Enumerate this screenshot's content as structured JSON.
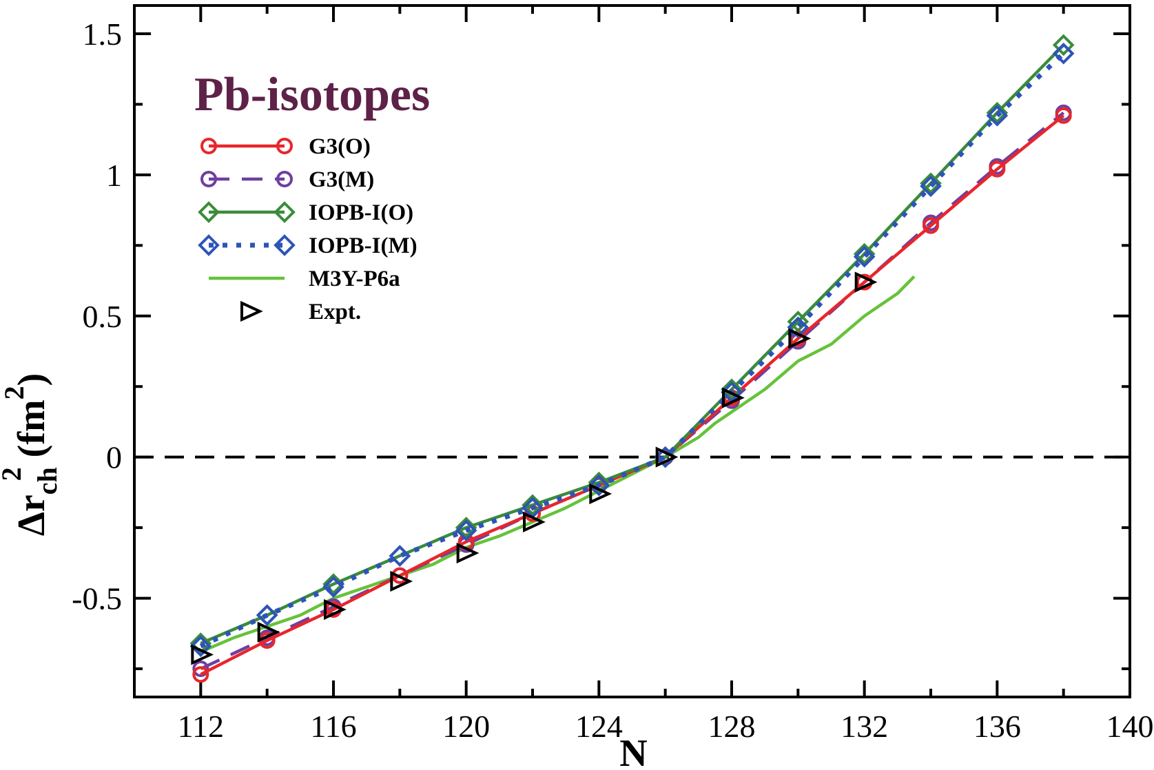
{
  "chart_data": {
    "type": "line",
    "title": "Pb-isotopes",
    "xlabel": "N",
    "ylabel": {
      "base": "Δr",
      "sub": "ch",
      "sup": "2",
      "unit_open": " (fm",
      "unit_sup": "2",
      "unit_close": ")"
    },
    "xlim": [
      110,
      140
    ],
    "ylim": [
      -0.85,
      1.6
    ],
    "xticks": [
      112,
      116,
      120,
      124,
      128,
      132,
      136,
      140
    ],
    "xtick_labels": [
      "112",
      "116",
      "120",
      "124",
      "128",
      "132",
      "136",
      "140"
    ],
    "yticks": [
      -0.5,
      0,
      0.5,
      1,
      1.5
    ],
    "ytick_labels": [
      "-0.5",
      "0",
      "0.5",
      "1",
      "1.5"
    ],
    "reference_line": {
      "y": 0,
      "style": "dashed"
    },
    "legend_position": "top-left",
    "series": [
      {
        "name": "G3(O)",
        "color": "#e8262b",
        "line": "solid",
        "marker": "circle",
        "x": [
          112,
          114,
          116,
          118,
          120,
          122,
          124,
          126,
          128,
          130,
          132,
          134,
          136,
          138
        ],
        "y": [
          -0.77,
          -0.65,
          -0.54,
          -0.42,
          -0.3,
          -0.2,
          -0.1,
          0.0,
          0.21,
          0.42,
          0.62,
          0.82,
          1.02,
          1.21
        ]
      },
      {
        "name": "G3(M)",
        "color": "#6f3fa0",
        "line": "dashed",
        "marker": "circle",
        "x": [
          112,
          114,
          116,
          118,
          120,
          122,
          124,
          126,
          128,
          130,
          132,
          134,
          136,
          138
        ],
        "y": [
          -0.75,
          -0.64,
          -0.53,
          -0.42,
          -0.31,
          -0.2,
          -0.1,
          0.0,
          0.2,
          0.41,
          0.62,
          0.83,
          1.03,
          1.22
        ]
      },
      {
        "name": "IOPB-I(O)",
        "color": "#3a8c3a",
        "line": "solid",
        "marker": "diamond",
        "x": [
          112,
          114,
          116,
          118,
          120,
          122,
          124,
          126,
          128,
          130,
          132,
          134,
          136,
          138
        ],
        "y": [
          -0.66,
          -0.56,
          -0.45,
          -0.35,
          -0.25,
          -0.17,
          -0.09,
          0.0,
          0.24,
          0.48,
          0.72,
          0.97,
          1.22,
          1.46
        ]
      },
      {
        "name": "IOPB-I(M)",
        "color": "#2e54b8",
        "line": "dotted",
        "marker": "diamond",
        "x": [
          112,
          114,
          116,
          118,
          120,
          122,
          124,
          126,
          128,
          130,
          132,
          134,
          136,
          138
        ],
        "y": [
          -0.67,
          -0.56,
          -0.46,
          -0.35,
          -0.26,
          -0.18,
          -0.1,
          0.0,
          0.23,
          0.46,
          0.71,
          0.96,
          1.21,
          1.43
        ]
      },
      {
        "name": "M3Y-P6a",
        "color": "#66c23a",
        "line": "solid",
        "marker": "none",
        "x": [
          112,
          113,
          114,
          115,
          116,
          117,
          118,
          119,
          120,
          121,
          122,
          123,
          124,
          125,
          126,
          127,
          127.5,
          128,
          129,
          130,
          131,
          132,
          133,
          133.5
        ],
        "y": [
          -0.69,
          -0.64,
          -0.6,
          -0.56,
          -0.5,
          -0.46,
          -0.42,
          -0.38,
          -0.32,
          -0.28,
          -0.23,
          -0.18,
          -0.12,
          -0.06,
          0.0,
          0.07,
          0.12,
          0.16,
          0.24,
          0.34,
          0.4,
          0.5,
          0.58,
          0.64
        ]
      },
      {
        "name": "Expt.",
        "color": "#000000",
        "line": "none",
        "marker": "triangle-right",
        "x": [
          112,
          114,
          116,
          118,
          120,
          122,
          124,
          126,
          128,
          130,
          132
        ],
        "y": [
          -0.7,
          -0.62,
          -0.54,
          -0.44,
          -0.34,
          -0.23,
          -0.13,
          0.0,
          0.21,
          0.42,
          0.62
        ]
      }
    ]
  },
  "colors": {
    "title": "#5e2147",
    "axis": "#000000"
  }
}
